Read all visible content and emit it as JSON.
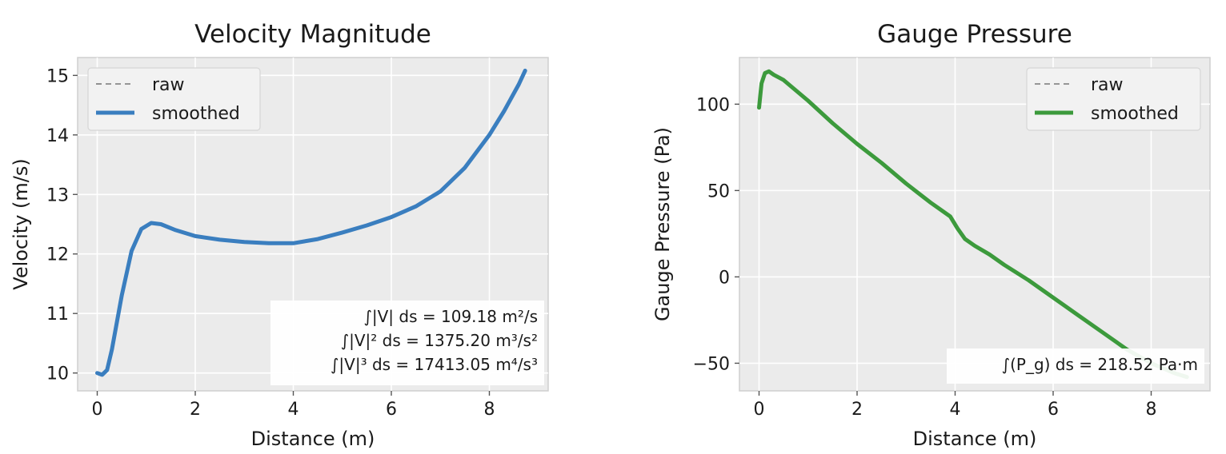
{
  "chart_data": [
    {
      "type": "line",
      "title": "Velocity Magnitude",
      "xlabel": "Distance (m)",
      "ylabel": "Velocity (m/s)",
      "xlim": [
        -0.4,
        9.2
      ],
      "ylim": [
        9.7,
        15.3
      ],
      "xticks": [
        0,
        2,
        4,
        6,
        8
      ],
      "yticks": [
        10,
        11,
        12,
        13,
        14,
        15
      ],
      "grid": true,
      "legend": {
        "placement": "upper-left",
        "entries": [
          "raw",
          "smoothed"
        ]
      },
      "series": [
        {
          "name": "raw",
          "style": "dashed",
          "color": "#777777",
          "x": [
            0,
            0.1,
            0.2,
            0.3,
            0.5,
            0.7,
            0.9,
            1.1,
            1.3,
            1.6,
            2,
            2.5,
            3,
            3.5,
            4,
            4.5,
            5,
            5.5,
            6,
            6.5,
            7,
            7.5,
            8,
            8.3,
            8.6,
            8.73
          ],
          "y": [
            10.0,
            9.97,
            10.05,
            10.4,
            11.3,
            12.05,
            12.42,
            12.52,
            12.5,
            12.4,
            12.3,
            12.24,
            12.2,
            12.18,
            12.18,
            12.25,
            12.36,
            12.48,
            12.62,
            12.8,
            13.05,
            13.45,
            14.0,
            14.4,
            14.85,
            15.08
          ]
        },
        {
          "name": "smoothed",
          "style": "solid",
          "color": "#3a7ebf",
          "x": [
            0,
            0.1,
            0.2,
            0.3,
            0.5,
            0.7,
            0.9,
            1.1,
            1.3,
            1.6,
            2,
            2.5,
            3,
            3.5,
            4,
            4.5,
            5,
            5.5,
            6,
            6.5,
            7,
            7.5,
            8,
            8.3,
            8.6,
            8.73
          ],
          "y": [
            10.0,
            9.97,
            10.05,
            10.4,
            11.3,
            12.05,
            12.42,
            12.52,
            12.5,
            12.4,
            12.3,
            12.24,
            12.2,
            12.18,
            12.18,
            12.25,
            12.36,
            12.48,
            12.62,
            12.8,
            13.05,
            13.45,
            14.0,
            14.4,
            14.85,
            15.08
          ]
        }
      ],
      "annotations": [
        "∫|V| ds = 109.18 m²/s",
        "∫|V|² ds = 1375.20 m³/s²",
        "∫|V|³ ds = 17413.05 m⁴/s³"
      ]
    },
    {
      "type": "line",
      "title": "Gauge Pressure",
      "xlabel": "Distance (m)",
      "ylabel": "Gauge Pressure (Pa)",
      "xlim": [
        -0.4,
        9.2
      ],
      "ylim": [
        -66,
        127
      ],
      "xticks": [
        0,
        2,
        4,
        6,
        8
      ],
      "yticks": [
        100,
        50,
        0,
        -50
      ],
      "ytick_labels": [
        "100",
        "50",
        "0",
        "−50"
      ],
      "grid": true,
      "legend": {
        "placement": "upper-right",
        "entries": [
          "raw",
          "smoothed"
        ]
      },
      "series": [
        {
          "name": "raw",
          "style": "dashed",
          "color": "#777777",
          "x": [
            0,
            0.05,
            0.12,
            0.2,
            0.3,
            0.5,
            1,
            1.5,
            2,
            2.5,
            3,
            3.5,
            3.9,
            4.05,
            4.2,
            4.4,
            4.7,
            5,
            5.5,
            6,
            6.5,
            7,
            7.5,
            8,
            8.5,
            8.73
          ],
          "y": [
            98,
            112,
            118,
            119,
            117,
            114,
            102,
            89,
            77,
            66,
            54,
            43,
            35,
            28,
            22,
            18,
            13,
            7,
            -2,
            -12,
            -22,
            -32,
            -42,
            -50,
            -56,
            -58
          ]
        },
        {
          "name": "smoothed",
          "style": "solid",
          "color": "#3c9a3c",
          "x": [
            0,
            0.05,
            0.12,
            0.2,
            0.3,
            0.5,
            1,
            1.5,
            2,
            2.5,
            3,
            3.5,
            3.9,
            4.05,
            4.2,
            4.4,
            4.7,
            5,
            5.5,
            6,
            6.5,
            7,
            7.5,
            8,
            8.5,
            8.73
          ],
          "y": [
            98,
            112,
            118,
            119,
            117,
            114,
            102,
            89,
            77,
            66,
            54,
            43,
            35,
            28,
            22,
            18,
            13,
            7,
            -2,
            -12,
            -22,
            -32,
            -42,
            -50,
            -56,
            -58
          ]
        }
      ],
      "annotations": [
        "∫(P_g) ds = 218.52 Pa·m"
      ]
    }
  ]
}
